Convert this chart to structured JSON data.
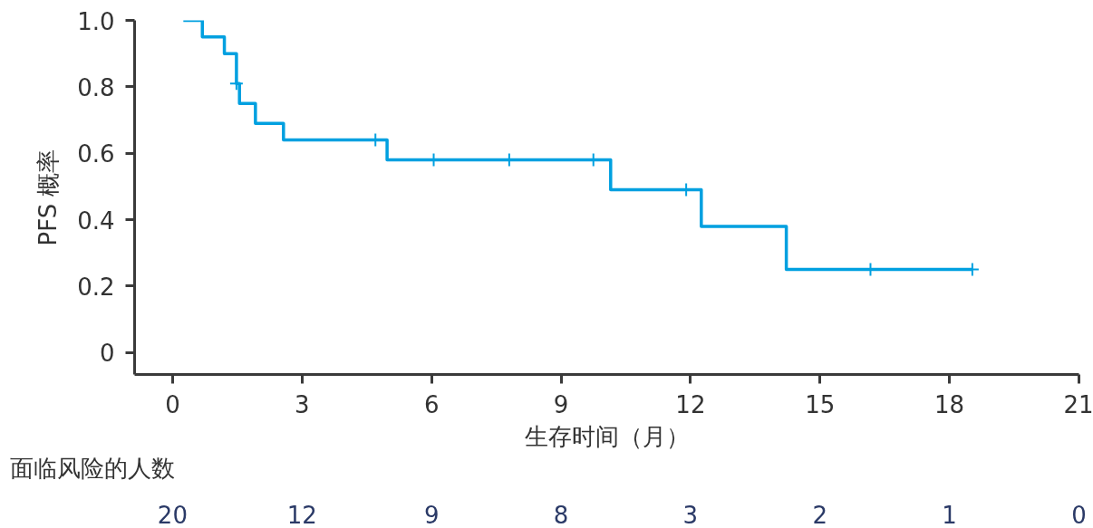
{
  "chart_data": {
    "type": "step",
    "xlabel": "生存时间（月）",
    "ylabel": "PFS 概率",
    "xlim": [
      -0.88,
      21
    ],
    "xticks": [
      0,
      3,
      6,
      9,
      12,
      15,
      18,
      21
    ],
    "ylim": [
      -0.066,
      1.0
    ],
    "yticks": [
      0,
      0.2,
      0.4,
      0.6,
      0.8,
      {
        "value": 1.0,
        "label": "1.0"
      }
    ],
    "grid": false,
    "series": [
      {
        "color": "#00a0e0",
        "x": [
          0.25,
          0.69,
          1.2,
          1.48,
          1.55,
          1.92,
          2.57,
          4.97,
          10.15,
          12.25,
          14.22,
          18.53
        ],
        "values": [
          1.0,
          0.95,
          0.9,
          0.81,
          0.75,
          0.69,
          0.64,
          0.58,
          0.49,
          0.38,
          0.25,
          0.25
        ]
      },
      {
        "type": "scatter",
        "marker": "cross",
        "color": "#00a0e0",
        "x": [
          1.48,
          4.7,
          6.05,
          7.8,
          9.75,
          11.9,
          16.17,
          18.53
        ],
        "values": [
          0.81,
          0.64,
          0.58,
          0.58,
          0.58,
          0.49,
          0.25,
          0.25
        ]
      }
    ],
    "annotations": [
      "面临风险的人数",
      "20",
      "12",
      "9",
      "8",
      "3",
      "2",
      "1",
      "0"
    ]
  }
}
